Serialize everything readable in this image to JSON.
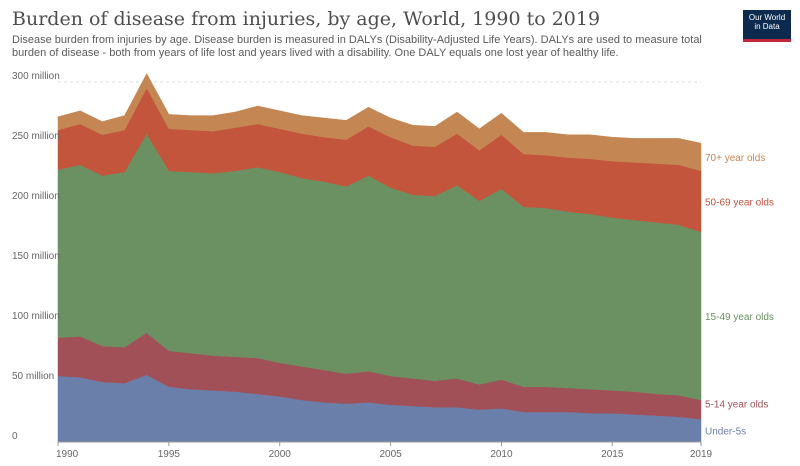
{
  "header": {
    "title": "Burden of disease from injuries, by age, World, 1990 to 2019",
    "subtitle": "Disease burden from injuries by age. Disease burden is measured in DALYs (Disability-Adjusted Life Years). DALYs are used to measure total burden of disease - both from years of life lost and years lived with a disability. One DALY equals one lost year of healthy life.",
    "logo_line1": "Our World",
    "logo_line2": "in Data"
  },
  "colors": {
    "under5": "#6b7fab",
    "age5_14": "#a15058",
    "age15_49": "#6b9162",
    "age50_69": "#c2553c",
    "age70": "#c48653",
    "grid": "#dddddd",
    "axis": "#999999"
  },
  "chart_data": {
    "type": "area",
    "stacked": true,
    "title": "Burden of disease from injuries, by age, World, 1990 to 2019",
    "x": [
      1990,
      1991,
      1992,
      1993,
      1994,
      1995,
      1996,
      1997,
      1998,
      1999,
      2000,
      2001,
      2002,
      2003,
      2004,
      2005,
      2006,
      2007,
      2008,
      2009,
      2010,
      2011,
      2012,
      2013,
      2014,
      2015,
      2016,
      2017,
      2018,
      2019
    ],
    "x_ticks": [
      "1990",
      "1995",
      "2000",
      "2005",
      "2010",
      "2015",
      "2019"
    ],
    "y_ticks": [
      {
        "value": 0,
        "label": "0"
      },
      {
        "value": 50000000,
        "label": "50 million"
      },
      {
        "value": 100000000,
        "label": "100 million"
      },
      {
        "value": 150000000,
        "label": "150 million"
      },
      {
        "value": 200000000,
        "label": "200 million"
      },
      {
        "value": 250000000,
        "label": "250 million"
      },
      {
        "value": 300000000,
        "label": "300 million"
      }
    ],
    "ylim": [
      0,
      300000000
    ],
    "grid": true,
    "legend": "right-inline",
    "series": [
      {
        "name": "Under-5s",
        "color_key": "under5",
        "values": [
          55000000,
          54000000,
          50000000,
          49000000,
          56000000,
          46000000,
          44000000,
          43000000,
          42000000,
          40000000,
          38000000,
          35000000,
          33000000,
          32000000,
          33000000,
          31000000,
          30000000,
          29000000,
          29000000,
          27000000,
          28000000,
          25000000,
          25000000,
          25000000,
          24000000,
          24000000,
          23000000,
          22000000,
          21000000,
          19000000
        ]
      },
      {
        "name": "5-14 year olds",
        "color_key": "age5_14",
        "values": [
          32000000,
          34000000,
          30000000,
          30000000,
          35000000,
          30000000,
          30000000,
          29000000,
          29000000,
          30000000,
          28000000,
          28000000,
          27000000,
          25000000,
          26000000,
          24000000,
          23000000,
          22000000,
          24000000,
          21000000,
          24000000,
          21000000,
          21000000,
          20000000,
          20000000,
          19000000,
          19000000,
          18000000,
          18000000,
          16000000
        ]
      },
      {
        "name": "15-49 year olds",
        "color_key": "age15_49",
        "values": [
          140000000,
          143000000,
          142000000,
          146000000,
          166000000,
          150000000,
          151000000,
          152000000,
          155000000,
          159000000,
          159000000,
          157000000,
          157000000,
          156000000,
          163000000,
          157000000,
          153000000,
          154000000,
          161000000,
          153000000,
          159000000,
          150000000,
          149000000,
          147000000,
          146000000,
          144000000,
          143000000,
          143000000,
          142000000,
          140000000
        ]
      },
      {
        "name": "50-69 year olds",
        "color_key": "age50_69",
        "values": [
          33000000,
          34000000,
          34000000,
          35000000,
          38000000,
          35000000,
          35000000,
          35000000,
          36000000,
          36000000,
          36000000,
          37000000,
          37000000,
          39000000,
          41000000,
          42000000,
          41000000,
          41000000,
          43000000,
          42000000,
          45000000,
          44000000,
          44000000,
          45000000,
          46000000,
          47000000,
          48000000,
          49000000,
          50000000,
          51000000
        ]
      },
      {
        "name": "70+ year olds",
        "color_key": "age70",
        "values": [
          11000000,
          11000000,
          11000000,
          12000000,
          12000000,
          12000000,
          12000000,
          13000000,
          13000000,
          15000000,
          15000000,
          15000000,
          16000000,
          16000000,
          16000000,
          16000000,
          17000000,
          17000000,
          18000000,
          18000000,
          18000000,
          18000000,
          19000000,
          19000000,
          20000000,
          20000000,
          20000000,
          21000000,
          22000000,
          23000000
        ]
      }
    ]
  }
}
